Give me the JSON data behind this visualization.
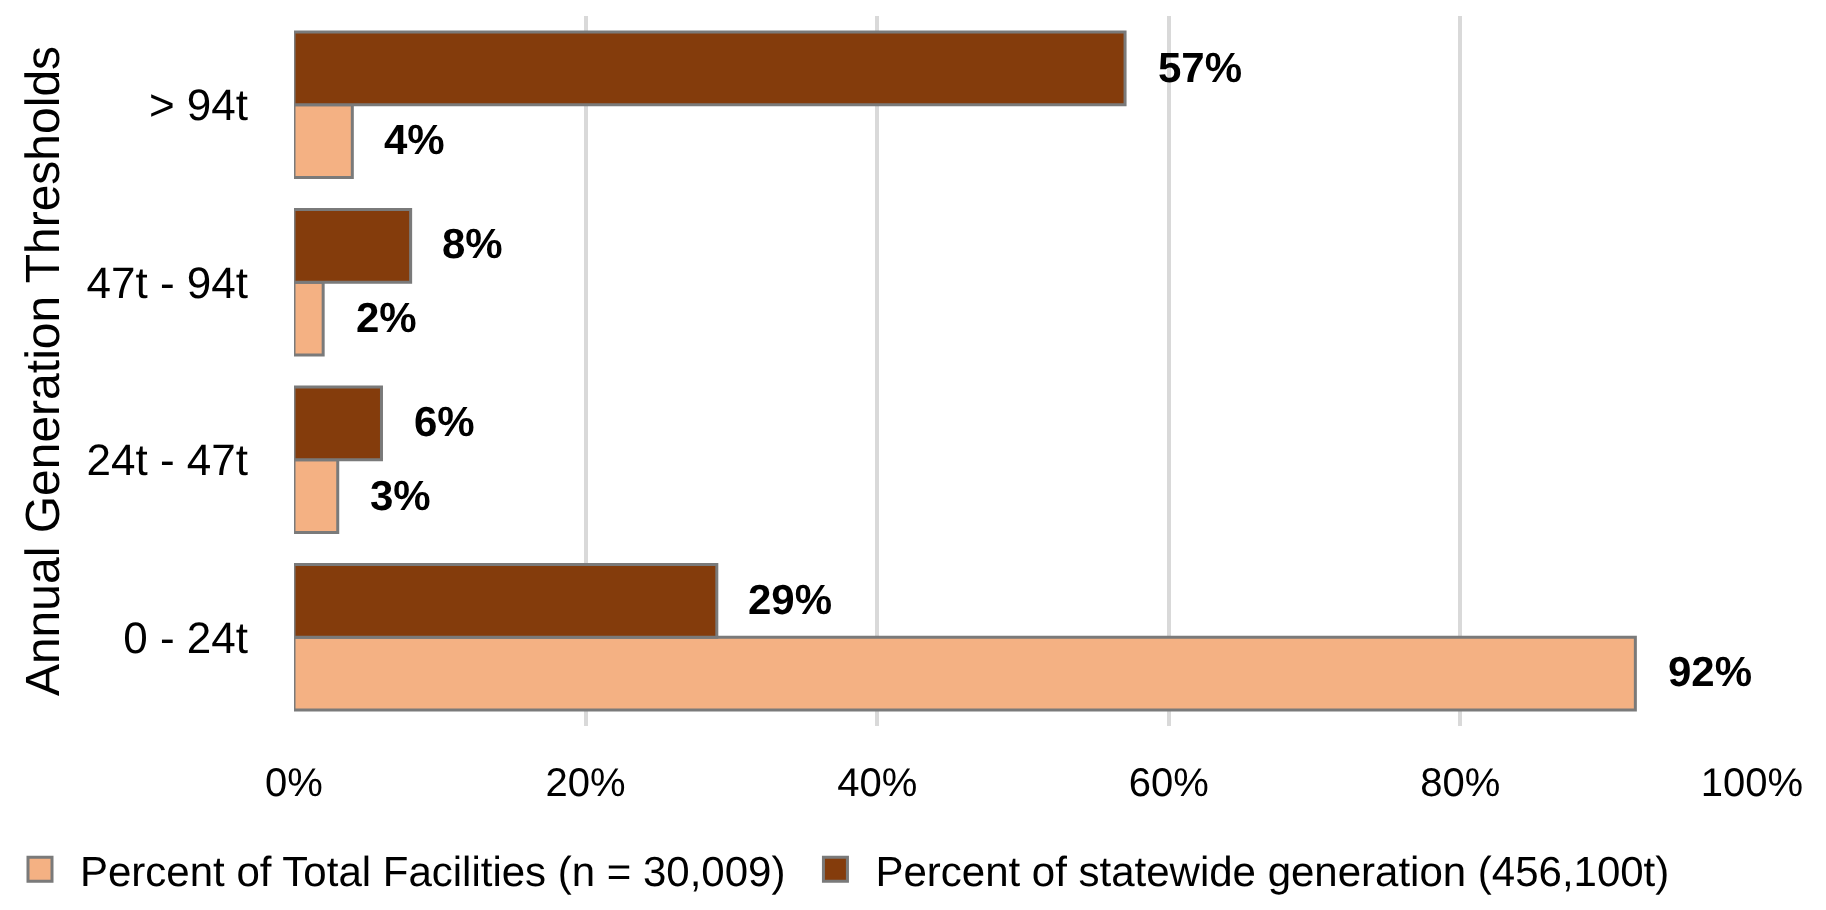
{
  "chart_data": {
    "type": "bar",
    "orientation": "horizontal",
    "ylabel": "Annual Generation Thresholds",
    "categories": [
      "> 94t",
      "47t - 94t",
      "24t - 47t",
      "0 - 24t"
    ],
    "series": [
      {
        "name": "Percent of Total Facilities (n = 30,009)",
        "color": "#f4b183",
        "values": [
          4,
          2,
          3,
          92
        ],
        "value_labels": [
          "4%",
          "2%",
          "3%",
          "92%"
        ]
      },
      {
        "name": "Percent of statewide generation (456,100t)",
        "color": "#843c0c",
        "values": [
          57,
          8,
          6,
          29
        ],
        "value_labels": [
          "57%",
          "8%",
          "6%",
          "29%"
        ]
      }
    ],
    "xlim": [
      0,
      100
    ],
    "xticks": [
      {
        "value": 0,
        "label": "0%"
      },
      {
        "value": 20,
        "label": "20%"
      },
      {
        "value": 40,
        "label": "40%"
      },
      {
        "value": 60,
        "label": "60%"
      },
      {
        "value": 80,
        "label": "80%"
      },
      {
        "value": 100,
        "label": "100%"
      }
    ],
    "grid": "x",
    "legend": "bottom"
  }
}
